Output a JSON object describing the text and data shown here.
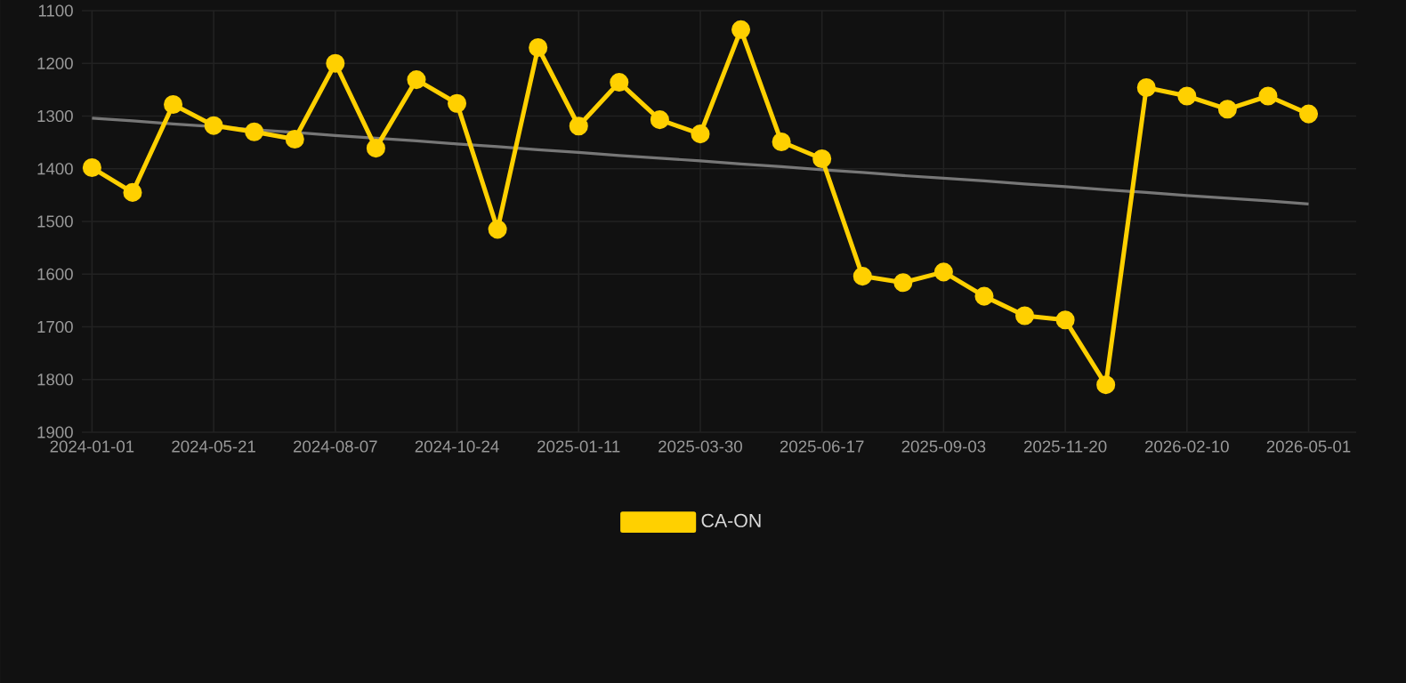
{
  "chart_data": {
    "type": "line",
    "categories": [
      "2024-01-01",
      null,
      null,
      "2024-05-21",
      null,
      null,
      "2024-08-07",
      null,
      null,
      "2024-10-24",
      null,
      null,
      "2025-01-11",
      null,
      null,
      "2025-03-30",
      null,
      null,
      "2025-06-17",
      null,
      null,
      "2025-09-03",
      null,
      null,
      "2025-11-20",
      null,
      null,
      "2026-02-10",
      null,
      null,
      "2026-05-01"
    ],
    "series": [
      {
        "name": "CA-ON",
        "color": "#ffd000",
        "marker": "circle",
        "values": [
          1398,
          1445,
          1278,
          1318,
          1330,
          1344,
          1200,
          1361,
          1231,
          1276,
          1515,
          1170,
          1319,
          1236,
          1307,
          1334,
          1136,
          1349,
          1381,
          1604,
          1616,
          1596,
          1642,
          1679,
          1687,
          1810,
          1246,
          1262,
          1287,
          1262,
          1296
        ]
      },
      {
        "type": "line",
        "color": "#777777",
        "marker": "none",
        "values": [
          1304,
          1309,
          1315,
          1320,
          1326,
          1331,
          1337,
          1342,
          1347,
          1353,
          1358,
          1364,
          1369,
          1375,
          1380,
          1385,
          1391,
          1396,
          1402,
          1407,
          1413,
          1418,
          1423,
          1429,
          1434,
          1440,
          1445,
          1451,
          1456,
          1461,
          1467
        ]
      }
    ],
    "ylim": [
      1900,
      1100
    ],
    "yticks": [
      1100,
      1200,
      1300,
      1400,
      1500,
      1600,
      1700,
      1800,
      1900
    ],
    "grid": true,
    "legend": "bottom"
  }
}
